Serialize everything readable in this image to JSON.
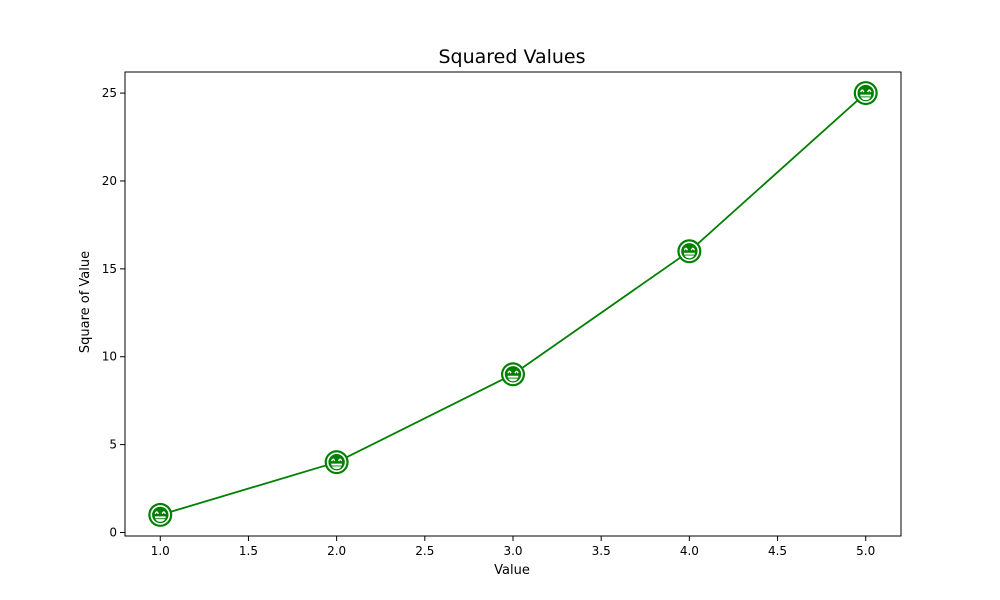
{
  "chart_data": {
    "type": "line",
    "title": "Squared Values",
    "xlabel": "Value",
    "ylabel": "Square of Value",
    "x": [
      1.0,
      2.0,
      3.0,
      4.0,
      5.0
    ],
    "series": [
      {
        "values": [
          1,
          4,
          9,
          16,
          25
        ],
        "color": "#008000",
        "marker": "grinning-face-emoji"
      }
    ],
    "xlim": [
      0.8,
      5.2
    ],
    "ylim": [
      -0.2,
      26.2
    ],
    "xticks": [
      1.0,
      1.5,
      2.0,
      2.5,
      3.0,
      3.5,
      4.0,
      4.5,
      5.0
    ],
    "xtick_labels": [
      "1.0",
      "1.5",
      "2.0",
      "2.5",
      "3.0",
      "3.5",
      "4.0",
      "4.5",
      "5.0"
    ],
    "yticks": [
      0,
      5,
      10,
      15,
      20,
      25
    ],
    "ytick_labels": [
      "0",
      "5",
      "10",
      "15",
      "20",
      "25"
    ],
    "grid": false,
    "legend": "none"
  }
}
